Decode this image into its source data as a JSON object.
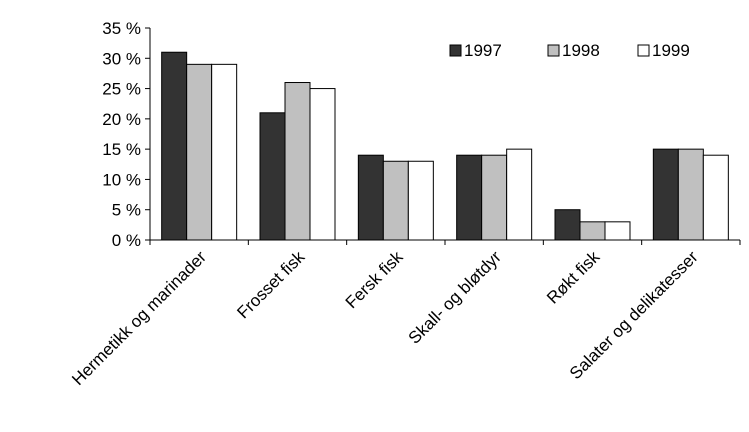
{
  "chart_data": {
    "type": "bar",
    "categories": [
      "Hermetikk og marinader",
      "Frosset fisk",
      "Fersk fisk",
      "Skall- og bløtdyr",
      "Røkt fisk",
      "Salater og delikatesser"
    ],
    "series": [
      {
        "name": "1997",
        "values": [
          31,
          21,
          14,
          14,
          5,
          15
        ],
        "color": "#333333"
      },
      {
        "name": "1998",
        "values": [
          29,
          26,
          13,
          14,
          3,
          15
        ],
        "color": "#c0c0c0"
      },
      {
        "name": "1999",
        "values": [
          29,
          25,
          13,
          15,
          3,
          14
        ],
        "color": "#ffffff"
      }
    ],
    "ylim": [
      0,
      35
    ],
    "yticks": [
      0,
      5,
      10,
      15,
      20,
      25,
      30,
      35
    ],
    "ytick_labels": [
      "0 %",
      "5 %",
      "10 %",
      "15 %",
      "20 %",
      "25 %",
      "30 %",
      "35 %"
    ],
    "grid": false,
    "legend_position": "top-right"
  }
}
